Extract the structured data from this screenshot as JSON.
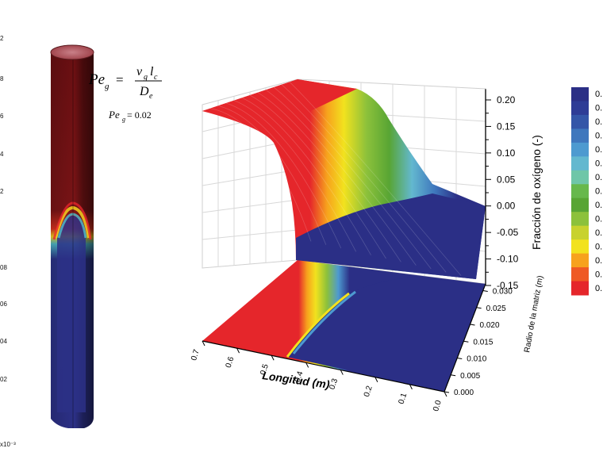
{
  "chart_data": {
    "type": "surface3d",
    "equation": {
      "lhs_main": "Pe",
      "lhs_sub": "g",
      "num_v": "v",
      "num_v_sub": "g",
      "num_l": "l",
      "num_l_sub": "c",
      "den": "D",
      "den_sub": "e",
      "value_text": "= 0.02"
    },
    "zlabel": "Fracción de oxígeno (-)",
    "xlabel": "Longitud (m)",
    "ylabel": "Radio de la matriz (m)",
    "z_ticks": [
      "0.20",
      "0.15",
      "0.10",
      "0.05",
      "0.00",
      "-0.05",
      "-0.10",
      "-0.15"
    ],
    "x_ticks": [
      "0.7",
      "0.6",
      "0.5",
      "0.4",
      "0.3",
      "0.2",
      "0.1",
      "0.0"
    ],
    "y_ticks": [
      "0.030",
      "0.025",
      "0.020",
      "0.015",
      "0.010",
      "0.005",
      "0.000"
    ],
    "zlim": [
      -0.15,
      0.22
    ],
    "xlim": [
      0.0,
      0.7
    ],
    "ylim": [
      0.0,
      0.03
    ],
    "left_scale_ticks": [
      "2",
      "8",
      "6",
      "4",
      "2",
      "",
      "08",
      "06",
      "04",
      "02"
    ],
    "left_scale_multiplier": "x10⁻³",
    "colorbar_labels": [
      "0.",
      "0.",
      "0.",
      "0.",
      "0.",
      "0.",
      "0.",
      "0.",
      "0.",
      "0.",
      "0.",
      "0.",
      "0.",
      "0.",
      "0."
    ],
    "colormap": [
      "#2b2f86",
      "#2e3c96",
      "#3456a8",
      "#3f77bd",
      "#4d9ad0",
      "#63b8cf",
      "#6fc6a8",
      "#67b84c",
      "#58a534",
      "#8cc13b",
      "#c8d22e",
      "#f2e21e",
      "#f7a21d",
      "#ef5a24",
      "#e5262b"
    ],
    "profile_points": [
      {
        "x": 0.7,
        "z": 0.21
      },
      {
        "x": 0.55,
        "z": 0.21
      },
      {
        "x": 0.45,
        "z": 0.2
      },
      {
        "x": 0.42,
        "z": 0.15
      },
      {
        "x": 0.4,
        "z": 0.08
      },
      {
        "x": 0.38,
        "z": 0.03
      },
      {
        "x": 0.35,
        "z": 0.01
      },
      {
        "x": 0.3,
        "z": 0.0
      },
      {
        "x": 0.1,
        "z": 0.0
      },
      {
        "x": 0.0,
        "z": 0.0
      }
    ]
  }
}
